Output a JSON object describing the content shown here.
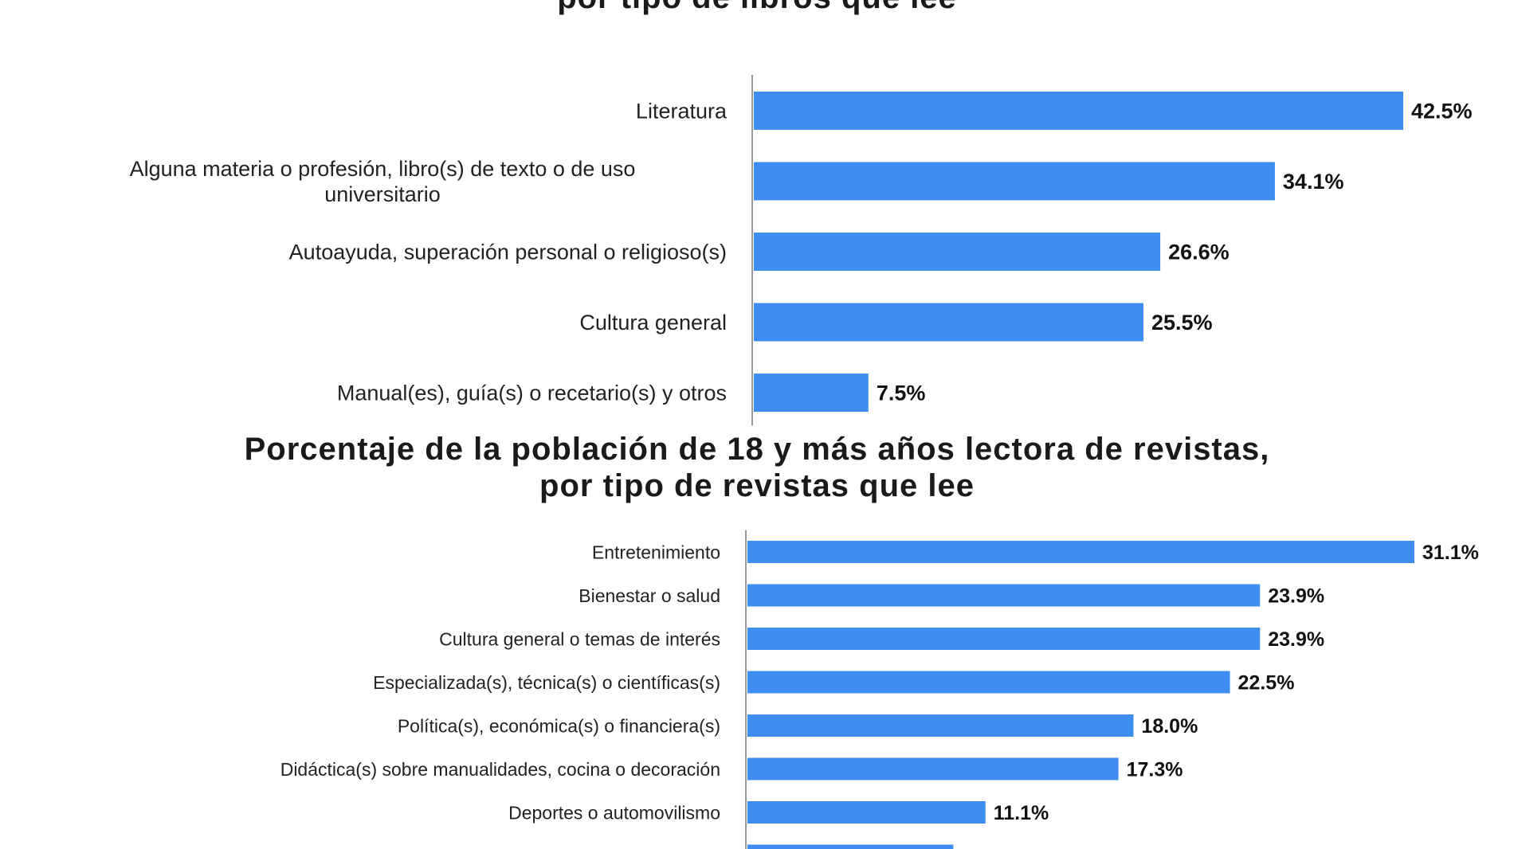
{
  "chart_data": [
    {
      "type": "bar",
      "orientation": "horizontal",
      "title_lines": [
        "",
        "por tipo de libros que lee"
      ],
      "categories": [
        [
          "Literatura"
        ],
        [
          "Alguna materia o profesión, libro(s) de texto o de uso",
          "universitario"
        ],
        [
          "Autoayuda, superación personal o religioso(s)"
        ],
        [
          "Cultura general"
        ],
        [
          "Manual(es), guía(s) o recetario(s) y otros"
        ]
      ],
      "values": [
        42.5,
        34.1,
        26.6,
        25.5,
        7.5
      ],
      "value_labels": [
        "42.5%",
        "34.1%",
        "26.6%",
        "25.5%",
        "7.5%"
      ],
      "xlim": [
        0,
        42.5
      ],
      "grid": false,
      "color": "#3d8ef0"
    },
    {
      "type": "bar",
      "orientation": "horizontal",
      "title_lines": [
        "Porcentaje de la población de 18 y más años lectora de revistas,",
        "por tipo de revistas que lee"
      ],
      "categories": [
        [
          "Entretenimiento"
        ],
        [
          "Bienestar o salud"
        ],
        [
          "Cultura general o temas de interés"
        ],
        [
          "Especializada(s), técnica(s) o científicas(s)"
        ],
        [
          "Política(s), económica(s) o financiera(s)"
        ],
        [
          "Didáctica(s) sobre manualidades, cocina o decoración"
        ],
        [
          "Deportes o automovilismo"
        ],
        [
          ""
        ]
      ],
      "values": [
        31.1,
        23.9,
        23.9,
        22.5,
        18.0,
        17.3,
        11.1,
        9.6
      ],
      "value_labels": [
        "31.1%",
        "23.9%",
        "23.9%",
        "22.5%",
        "18.0%",
        "17.3%",
        "11.1%",
        ""
      ],
      "xlim": [
        0,
        31.1
      ],
      "grid": false,
      "color": "#3d8ef0"
    }
  ]
}
